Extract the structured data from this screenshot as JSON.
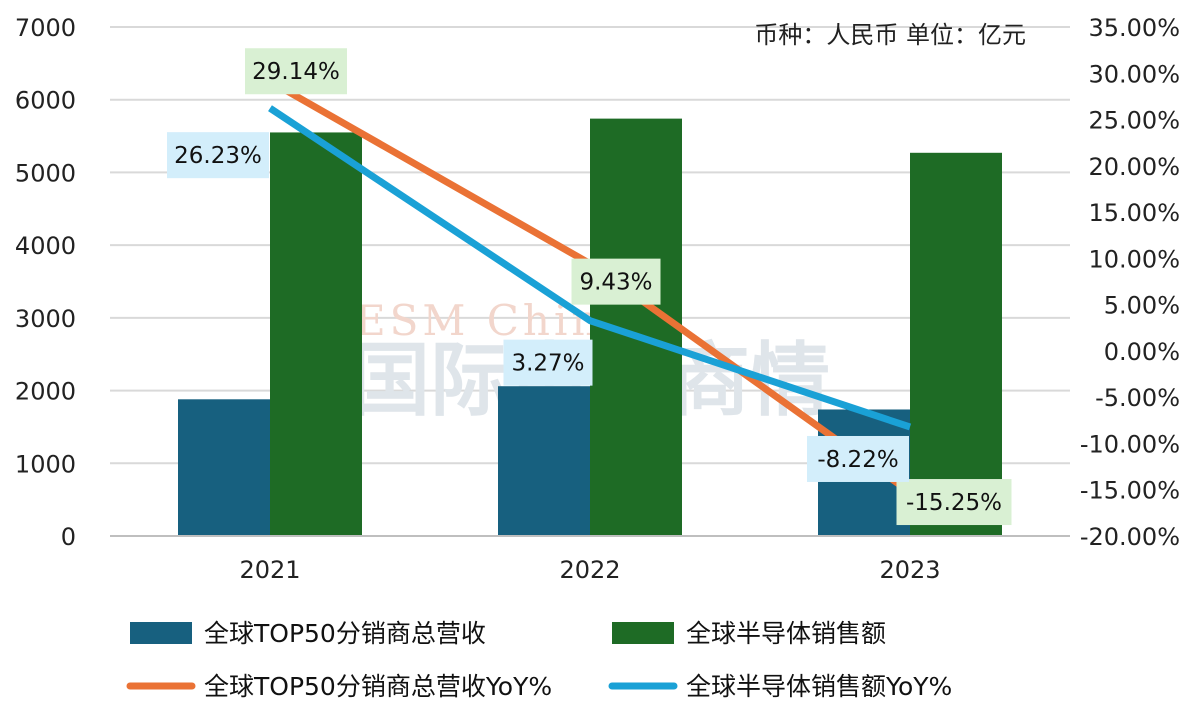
{
  "chart_data": {
    "type": "bar",
    "currency_note": "币种：人民币 单位：亿元",
    "categories": [
      "2021",
      "2022",
      "2023"
    ],
    "y_left": {
      "min": 0,
      "max": 7000,
      "step": 1000,
      "ticks": [
        "0",
        "1000",
        "2000",
        "3000",
        "4000",
        "5000",
        "6000",
        "7000"
      ]
    },
    "y_right": {
      "min": -20,
      "max": 35,
      "step": 5,
      "ticks": [
        "-20.00%",
        "-15.00%",
        "-10.00%",
        "-5.00%",
        "0.00%",
        "5.00%",
        "10.00%",
        "15.00%",
        "20.00%",
        "25.00%",
        "30.00%",
        "35.00%"
      ]
    },
    "bar_series": [
      {
        "name": "全球TOP50分销商总营收",
        "color": "#17607f",
        "values": [
          1880,
          2060,
          1740
        ]
      },
      {
        "name": "全球半导体销售额",
        "color": "#1e6b25",
        "values": [
          5550,
          5740,
          5270
        ]
      }
    ],
    "line_series": [
      {
        "name": "全球TOP50分销商总营收YoY%",
        "color": "#ea7235",
        "values": [
          29.14,
          9.43,
          -15.25
        ],
        "labels": [
          "29.14%",
          "9.43%",
          "-15.25%"
        ],
        "label_bg": "#d9f0d3"
      },
      {
        "name": "全球半导体销售额YoY%",
        "color": "#1aa1d6",
        "values": [
          26.23,
          3.27,
          -8.22
        ],
        "labels": [
          "26.23%",
          "3.27%",
          "-8.22%"
        ],
        "label_bg": "#d3eefb"
      }
    ],
    "watermark": {
      "line1": "ESM China",
      "line2": "国际电子商情"
    }
  }
}
